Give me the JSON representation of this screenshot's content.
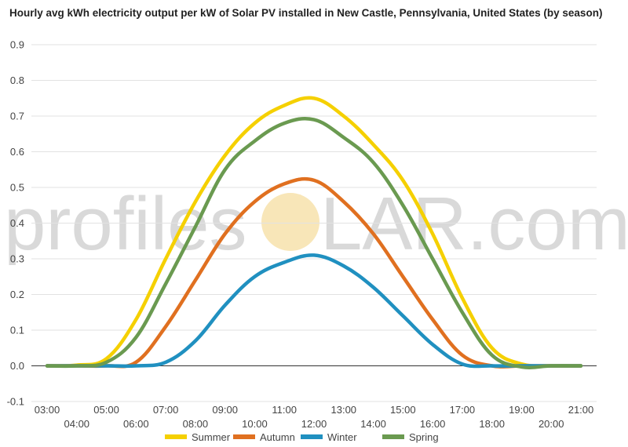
{
  "chart_data": {
    "type": "line",
    "title": "Hourly avg kWh electricity output per kW of Solar PV installed in New Castle, Pennsylvania, United States (by season)",
    "xlabel": "",
    "ylabel": "",
    "ylim": [
      -0.1,
      0.9
    ],
    "yticks": [
      "0.9",
      "0.8",
      "0.7",
      "0.6",
      "0.5",
      "0.4",
      "0.3",
      "0.2",
      "0.1",
      "0.0",
      "-0.1"
    ],
    "x": [
      "03:00",
      "04:00",
      "05:00",
      "06:00",
      "07:00",
      "08:00",
      "09:00",
      "10:00",
      "11:00",
      "12:00",
      "13:00",
      "14:00",
      "15:00",
      "16:00",
      "17:00",
      "18:00",
      "19:00",
      "20:00",
      "21:00"
    ],
    "series": [
      {
        "name": "Summer",
        "color": "#f5d000",
        "values": [
          0.0,
          0.002,
          0.02,
          0.13,
          0.3,
          0.46,
          0.59,
          0.68,
          0.73,
          0.75,
          0.7,
          0.62,
          0.52,
          0.37,
          0.19,
          0.05,
          0.005,
          0.0,
          0.0
        ]
      },
      {
        "name": "Autumn",
        "color": "#e07020",
        "values": [
          0.0,
          0.0,
          0.0,
          0.01,
          0.11,
          0.24,
          0.37,
          0.46,
          0.51,
          0.52,
          0.46,
          0.37,
          0.25,
          0.13,
          0.03,
          0.0,
          0.0,
          0.0,
          0.0
        ]
      },
      {
        "name": "Winter",
        "color": "#2090c0",
        "values": [
          0.0,
          0.0,
          0.0,
          0.0,
          0.01,
          0.07,
          0.17,
          0.25,
          0.29,
          0.31,
          0.28,
          0.22,
          0.14,
          0.06,
          0.005,
          0.0,
          0.0,
          0.0,
          0.0
        ]
      },
      {
        "name": "Spring",
        "color": "#6a9a50",
        "values": [
          0.0,
          0.0,
          0.01,
          0.08,
          0.23,
          0.39,
          0.55,
          0.63,
          0.68,
          0.69,
          0.64,
          0.57,
          0.45,
          0.3,
          0.15,
          0.03,
          -0.003,
          0.0,
          0.0
        ]
      }
    ],
    "grid": true,
    "legend": "bottom-center"
  },
  "watermark": {
    "text_left": "profiles",
    "text_right": "LAR.com",
    "sun_color": "#f8e6b8"
  }
}
